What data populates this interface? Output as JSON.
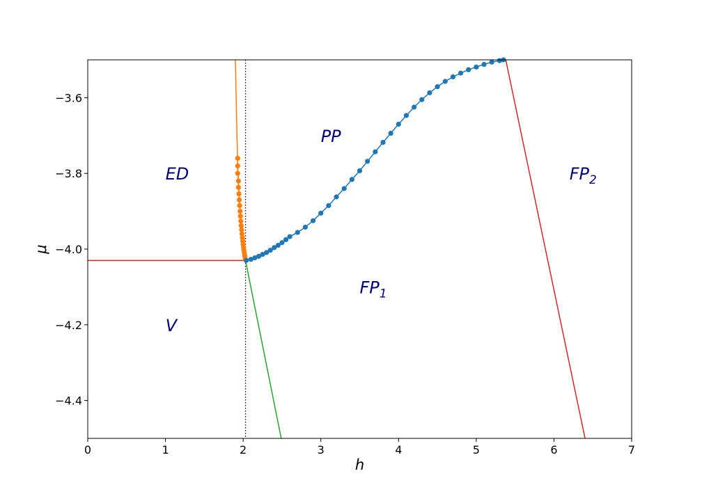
{
  "chart_data": {
    "type": "line",
    "xlabel": "h",
    "ylabel": "μ",
    "xlim": [
      0,
      7
    ],
    "ylim": [
      -4.5,
      -3.5
    ],
    "x_ticks": [
      0,
      1,
      2,
      3,
      4,
      5,
      6,
      7
    ],
    "x_tick_labels": [
      "0",
      "1",
      "2",
      "3",
      "4",
      "5",
      "6",
      "7"
    ],
    "y_ticks": [
      -3.6,
      -3.8,
      -4.0,
      -4.2,
      -4.4
    ],
    "y_tick_labels": [
      "−3.6",
      "−3.8",
      "−4.0",
      "−4.2",
      "−4.4"
    ],
    "grid": false,
    "colors": {
      "blue": "#1f77b4",
      "orange": "#ff7f0e",
      "green": "#2ca02c",
      "red": "#d62728",
      "region_text": "#00007a"
    },
    "vertical_reference": {
      "x": 2.03,
      "style": "dotted",
      "color": "#000000"
    },
    "lines": [
      {
        "color": "#d62728",
        "points": [
          [
            0,
            -4.03
          ],
          [
            2.03,
            -4.03
          ]
        ]
      },
      {
        "color": "#2ca02c",
        "points": [
          [
            2.03,
            -4.03
          ],
          [
            2.49,
            -4.5
          ]
        ]
      },
      {
        "color": "#d62728",
        "points": [
          [
            5.38,
            -3.5
          ],
          [
            6.4,
            -4.5
          ]
        ]
      },
      {
        "color": "#ff7f0e",
        "points": [
          [
            1.9,
            -3.5
          ],
          [
            1.91,
            -3.6
          ],
          [
            1.92,
            -3.7
          ],
          [
            1.93,
            -3.78
          ],
          [
            1.95,
            -3.86
          ],
          [
            1.97,
            -3.92
          ],
          [
            1.99,
            -3.97
          ],
          [
            2.01,
            -4.0
          ],
          [
            2.02,
            -4.02
          ],
          [
            2.03,
            -4.03
          ]
        ]
      }
    ],
    "series": [
      {
        "color": "#ff7f0e",
        "marker": "circle",
        "points": [
          [
            1.93,
            -3.76
          ],
          [
            1.93,
            -3.78
          ],
          [
            1.93,
            -3.8
          ],
          [
            1.94,
            -3.82
          ],
          [
            1.94,
            -3.837
          ],
          [
            1.945,
            -3.854
          ],
          [
            1.95,
            -3.87
          ],
          [
            1.955,
            -3.885
          ],
          [
            1.96,
            -3.9
          ],
          [
            1.965,
            -3.913
          ],
          [
            1.97,
            -3.926
          ],
          [
            1.975,
            -3.938
          ],
          [
            1.98,
            -3.949
          ],
          [
            1.985,
            -3.96
          ],
          [
            1.99,
            -3.97
          ],
          [
            1.995,
            -3.979
          ],
          [
            2.0,
            -3.988
          ],
          [
            2.005,
            -3.996
          ],
          [
            2.01,
            -4.003
          ],
          [
            2.015,
            -4.01
          ],
          [
            2.02,
            -4.017
          ],
          [
            2.025,
            -4.023
          ],
          [
            2.03,
            -4.028
          ]
        ]
      },
      {
        "color": "#1f77b4",
        "marker": "circle",
        "points": [
          [
            2.04,
            -4.03
          ],
          [
            2.1,
            -4.027
          ],
          [
            2.15,
            -4.023
          ],
          [
            2.2,
            -4.019
          ],
          [
            2.25,
            -4.014
          ],
          [
            2.3,
            -4.009
          ],
          [
            2.35,
            -4.003
          ],
          [
            2.4,
            -3.996
          ],
          [
            2.45,
            -3.99
          ],
          [
            2.5,
            -3.983
          ],
          [
            2.55,
            -3.975
          ],
          [
            2.6,
            -3.967
          ],
          [
            2.7,
            -3.956
          ],
          [
            2.8,
            -3.942
          ],
          [
            2.9,
            -3.925
          ],
          [
            3.0,
            -3.905
          ],
          [
            3.1,
            -3.885
          ],
          [
            3.2,
            -3.862
          ],
          [
            3.3,
            -3.84
          ],
          [
            3.4,
            -3.816
          ],
          [
            3.5,
            -3.793
          ],
          [
            3.6,
            -3.768
          ],
          [
            3.7,
            -3.743
          ],
          [
            3.8,
            -3.718
          ],
          [
            3.9,
            -3.694
          ],
          [
            4.0,
            -3.67
          ],
          [
            4.1,
            -3.647
          ],
          [
            4.2,
            -3.625
          ],
          [
            4.3,
            -3.605
          ],
          [
            4.4,
            -3.587
          ],
          [
            4.5,
            -3.571
          ],
          [
            4.6,
            -3.557
          ],
          [
            4.7,
            -3.545
          ],
          [
            4.8,
            -3.535
          ],
          [
            4.9,
            -3.526
          ],
          [
            5.0,
            -3.519
          ],
          [
            5.1,
            -3.512
          ],
          [
            5.2,
            -3.506
          ],
          [
            5.3,
            -3.502
          ],
          [
            5.35,
            -3.5
          ]
        ]
      }
    ],
    "region_labels": [
      {
        "text": "ED",
        "sub": "",
        "x": 1.0,
        "y": -3.8
      },
      {
        "text": "PP",
        "sub": "",
        "x": 3.0,
        "y": -3.7
      },
      {
        "text": "FP",
        "sub": "2",
        "x": 6.2,
        "y": -3.8
      },
      {
        "text": "FP",
        "sub": "1",
        "x": 3.5,
        "y": -4.1
      },
      {
        "text": "V",
        "sub": "",
        "x": 1.0,
        "y": -4.2
      }
    ]
  }
}
